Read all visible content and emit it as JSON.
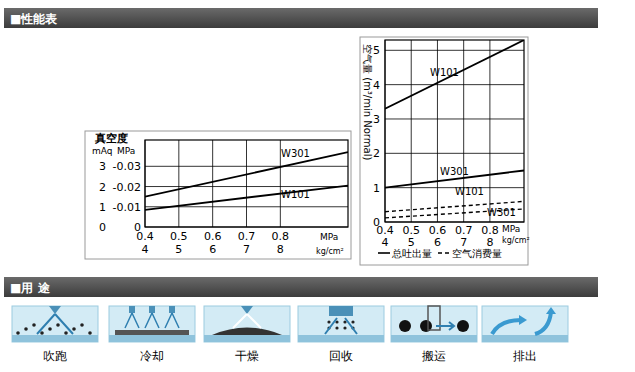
{
  "headings": [
    "■性能表",
    "■用 途"
  ],
  "chart_data": [
    {
      "type": "line",
      "title": "真空度",
      "ylabel": "mAq",
      "y2label": "MPa",
      "xlabel": "MPa",
      "x2label": "kg/cm²",
      "x": [
        0.4,
        1.0
      ],
      "xlim": [
        0.4,
        1.0
      ],
      "xticks": [
        0.4,
        0.5,
        0.6,
        0.7,
        0.8
      ],
      "x2lim": [
        4,
        10
      ],
      "x2ticks": [
        4,
        5,
        6,
        7,
        8
      ],
      "ylim": [
        0,
        4.3
      ],
      "yticks": [
        0,
        1,
        2,
        3
      ],
      "y2lim": [
        0,
        -0.043
      ],
      "y2ticks": [
        0,
        -0.01,
        -0.02,
        -0.03
      ],
      "grid": true,
      "series": [
        {
          "name": "W301",
          "color": "#000000",
          "line_style": "solid",
          "values": [
            1.5,
            3.7
          ]
        },
        {
          "name": "W101",
          "color": "#000000",
          "line_style": "solid",
          "values": [
            0.85,
            2.05
          ]
        }
      ]
    },
    {
      "type": "line",
      "ylabel": "空气量 (m³/min Normal)",
      "xlabel": "MPa",
      "x2label": "kg/cm²",
      "x": [
        0.4,
        0.93
      ],
      "xlim": [
        0.4,
        0.93
      ],
      "xticks": [
        0.4,
        0.5,
        0.6,
        0.7,
        0.8
      ],
      "x2lim": [
        4,
        9.3
      ],
      "x2ticks": [
        4,
        5,
        6,
        7,
        8
      ],
      "ylim": [
        0,
        5.3
      ],
      "yticks": [
        0,
        1,
        2,
        3,
        4,
        5
      ],
      "grid": true,
      "series": [
        {
          "name": "W101",
          "color": "#000000",
          "line_style": "solid",
          "values": [
            3.3,
            5.3
          ]
        },
        {
          "name": "W301",
          "color": "#000000",
          "line_style": "solid",
          "values": [
            1.0,
            1.5
          ]
        },
        {
          "name": "W101",
          "color": "#000000",
          "line_style": "dashed",
          "values": [
            0.3,
            0.6
          ]
        },
        {
          "name": "W301",
          "color": "#000000",
          "line_style": "dashed",
          "values": [
            0.12,
            0.38
          ]
        }
      ],
      "legend_items": [
        {
          "label": "总吐出量",
          "line_style": "solid"
        },
        {
          "label": "空气消费量",
          "line_style": "dashed"
        }
      ]
    }
  ],
  "uses": [
    "吹跑",
    "冷却",
    "干燥",
    "回收",
    "搬运",
    "排出"
  ]
}
